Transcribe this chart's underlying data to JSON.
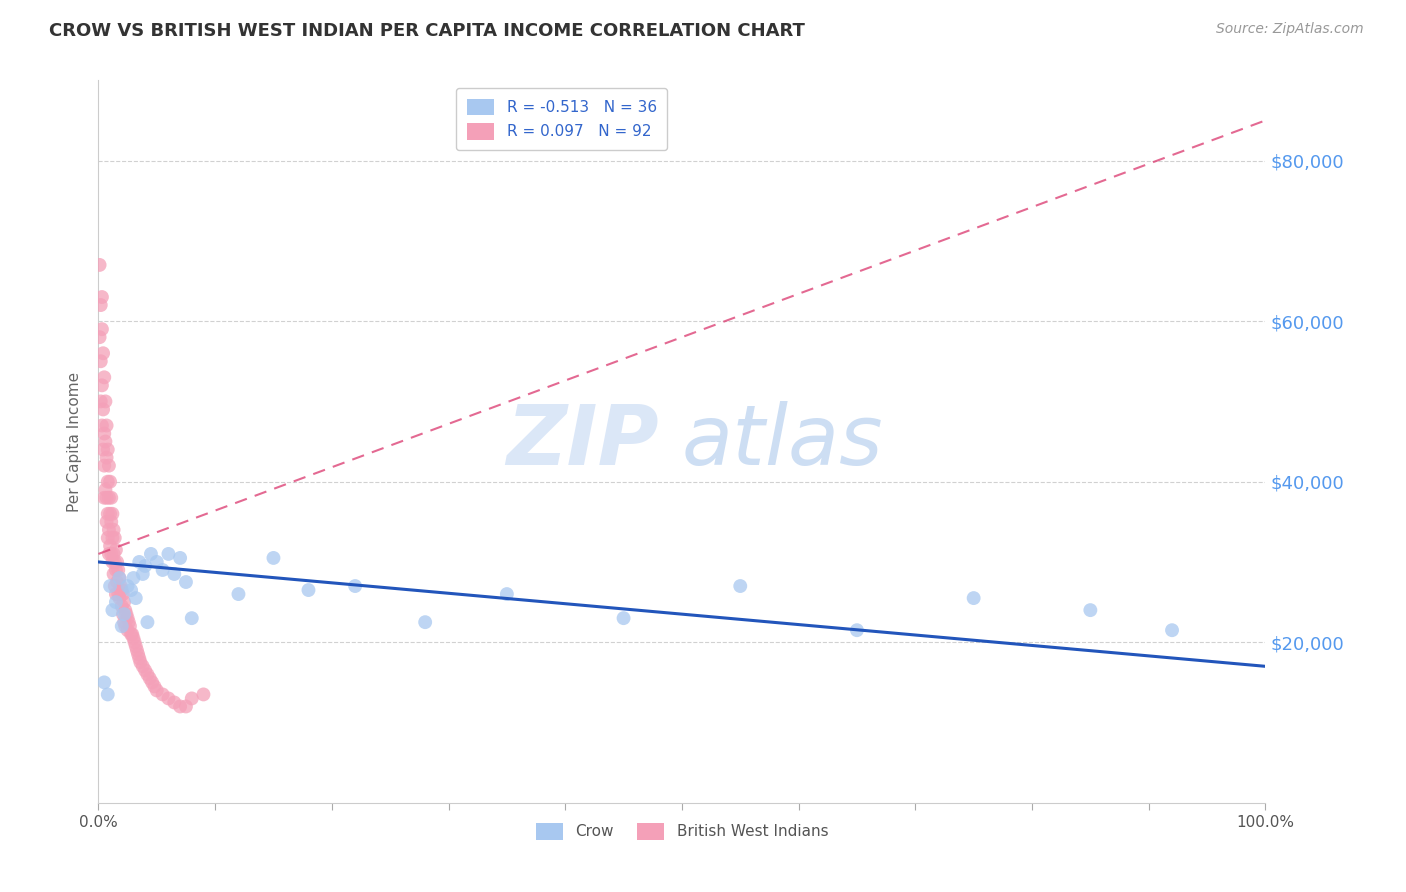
{
  "title": "CROW VS BRITISH WEST INDIAN PER CAPITA INCOME CORRELATION CHART",
  "source": "Source: ZipAtlas.com",
  "ylabel": "Per Capita Income",
  "yticks": [
    20000,
    40000,
    60000,
    80000
  ],
  "ytick_labels": [
    "$20,000",
    "$40,000",
    "$60,000",
    "$80,000"
  ],
  "crow_color": "#a8c8f0",
  "bwi_color": "#f4a0b8",
  "crow_line_color": "#2255bb",
  "bwi_line_color": "#dd4477",
  "crow_R": -0.513,
  "crow_N": 36,
  "bwi_R": 0.097,
  "bwi_N": 92,
  "crow_scatter_x": [
    0.005,
    0.008,
    0.01,
    0.012,
    0.015,
    0.018,
    0.02,
    0.022,
    0.025,
    0.028,
    0.03,
    0.032,
    0.035,
    0.038,
    0.04,
    0.042,
    0.045,
    0.05,
    0.055,
    0.06,
    0.065,
    0.07,
    0.075,
    0.08,
    0.12,
    0.15,
    0.18,
    0.22,
    0.28,
    0.35,
    0.45,
    0.55,
    0.65,
    0.75,
    0.85,
    0.92
  ],
  "crow_scatter_y": [
    15000,
    13500,
    27000,
    24000,
    25000,
    28000,
    22000,
    23500,
    27000,
    26500,
    28000,
    25500,
    30000,
    28500,
    29500,
    22500,
    31000,
    30000,
    29000,
    31000,
    28500,
    30500,
    27500,
    23000,
    26000,
    30500,
    26500,
    27000,
    22500,
    26000,
    23000,
    27000,
    21500,
    25500,
    24000,
    21500
  ],
  "bwi_scatter_x": [
    0.001,
    0.001,
    0.002,
    0.002,
    0.002,
    0.003,
    0.003,
    0.003,
    0.003,
    0.004,
    0.004,
    0.004,
    0.005,
    0.005,
    0.005,
    0.005,
    0.006,
    0.006,
    0.006,
    0.007,
    0.007,
    0.007,
    0.007,
    0.008,
    0.008,
    0.008,
    0.008,
    0.009,
    0.009,
    0.009,
    0.009,
    0.01,
    0.01,
    0.01,
    0.011,
    0.011,
    0.011,
    0.012,
    0.012,
    0.012,
    0.013,
    0.013,
    0.013,
    0.014,
    0.014,
    0.014,
    0.015,
    0.015,
    0.015,
    0.016,
    0.016,
    0.017,
    0.017,
    0.018,
    0.018,
    0.019,
    0.02,
    0.02,
    0.021,
    0.021,
    0.022,
    0.022,
    0.023,
    0.023,
    0.024,
    0.025,
    0.025,
    0.026,
    0.027,
    0.028,
    0.029,
    0.03,
    0.031,
    0.032,
    0.033,
    0.034,
    0.035,
    0.036,
    0.038,
    0.04,
    0.042,
    0.044,
    0.046,
    0.048,
    0.05,
    0.055,
    0.06,
    0.065,
    0.07,
    0.075,
    0.08,
    0.09
  ],
  "bwi_scatter_y": [
    67000,
    58000,
    62000,
    55000,
    50000,
    63000,
    59000,
    52000,
    47000,
    56000,
    49000,
    44000,
    53000,
    46000,
    42000,
    38000,
    50000,
    45000,
    39000,
    47000,
    43000,
    38000,
    35000,
    44000,
    40000,
    36000,
    33000,
    42000,
    38000,
    34000,
    31000,
    40000,
    36000,
    32000,
    38000,
    35000,
    31000,
    36000,
    33000,
    30000,
    34000,
    31000,
    28500,
    33000,
    30000,
    27000,
    31500,
    29000,
    26000,
    30000,
    27500,
    29000,
    26000,
    28000,
    25500,
    27000,
    26500,
    24500,
    26000,
    23500,
    25000,
    22500,
    24000,
    22000,
    23500,
    23000,
    21500,
    22500,
    22000,
    21000,
    21000,
    20500,
    20000,
    19500,
    19000,
    18500,
    18000,
    17500,
    17000,
    16500,
    16000,
    15500,
    15000,
    14500,
    14000,
    13500,
    13000,
    12500,
    12000,
    12000,
    13000,
    13500
  ],
  "xmin": 0.0,
  "xmax": 1.0,
  "ymin": 0,
  "ymax": 90000,
  "crow_trendline_x": [
    0.0,
    1.0
  ],
  "crow_trendline_y": [
    30000,
    17000
  ],
  "bwi_trendline_x": [
    0.0,
    1.0
  ],
  "bwi_trendline_y": [
    31000,
    85000
  ]
}
